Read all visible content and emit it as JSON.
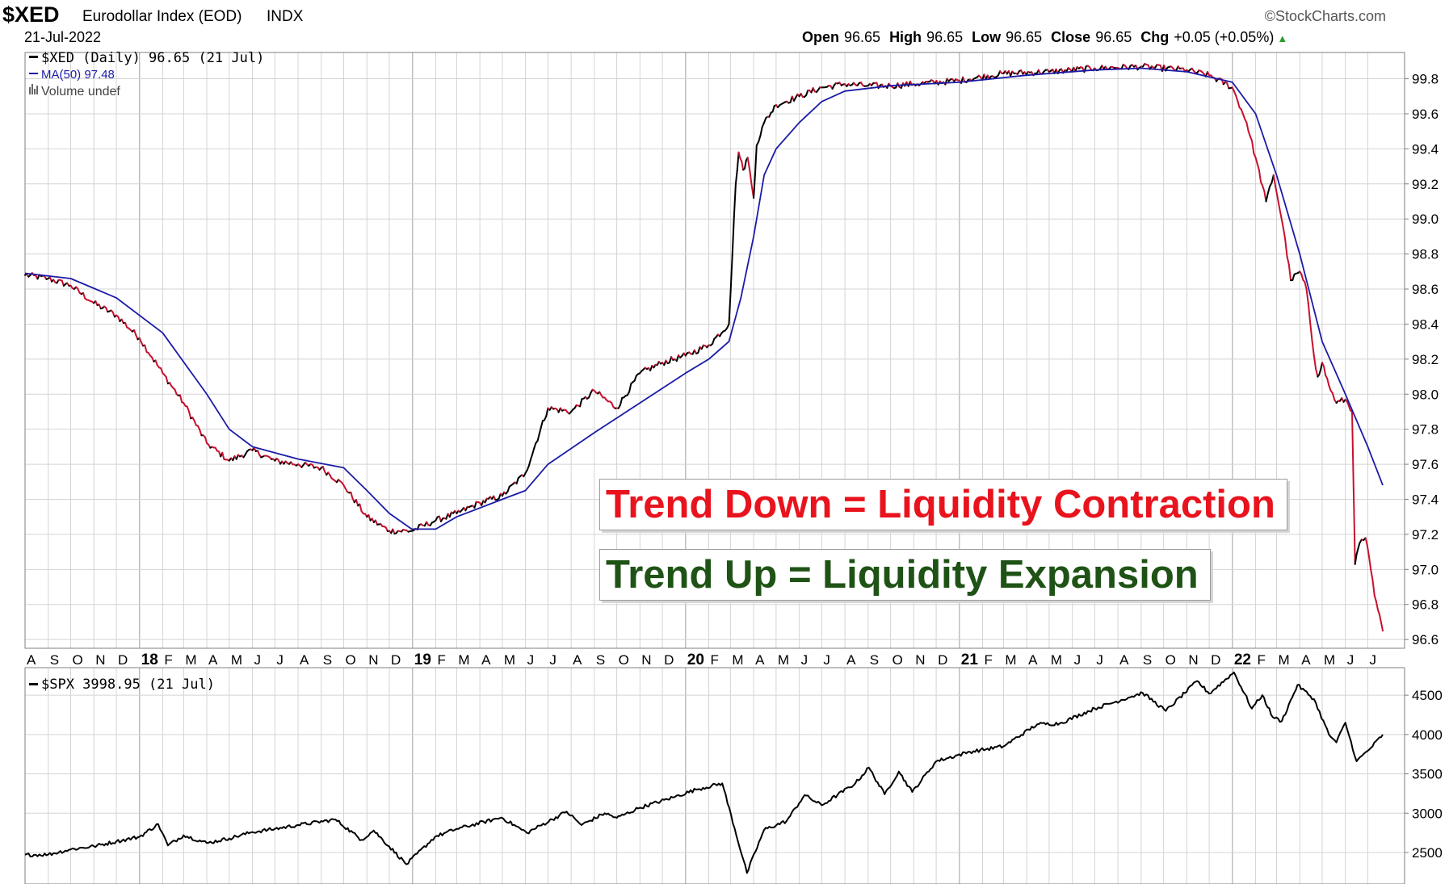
{
  "header": {
    "symbol": "$XED",
    "name": "Eurodollar Index (EOD)",
    "exchange": "INDX",
    "date": "21-Jul-2022",
    "brand": "©StockCharts.com",
    "ohlc": [
      {
        "label": "Open",
        "value": "96.65"
      },
      {
        "label": "High",
        "value": "96.65"
      },
      {
        "label": "Low",
        "value": "96.65"
      },
      {
        "label": "Close",
        "value": "96.65"
      }
    ],
    "chg_label": "Chg",
    "chg_value": "+0.05 (+0.05%)",
    "chg_arrow": "▲"
  },
  "legend": {
    "xed": "$XED (Daily) 96.65 (21 Jul)",
    "ma": "MA(50) 97.48",
    "volume": "Volume undef",
    "spx": "$SPX 3998.95 (21 Jul)"
  },
  "annotations": {
    "down": "Trend Down = Liquidity Contraction",
    "up": "Trend Up = Liquidity Expansion"
  },
  "colors": {
    "down_text": "#e8131d",
    "up_text": "#1f5316",
    "price_up": "#000000",
    "price_down": "#c8102e",
    "ma_line": "#1b1ba8",
    "spx_line": "#000000",
    "grid": "#d4d4d4"
  },
  "chart_data": [
    {
      "type": "line",
      "title": "$XED Eurodollar Index (EOD)",
      "y_ticks": [
        "99.8",
        "99.6",
        "99.4",
        "99.2",
        "99.0",
        "98.8",
        "98.6",
        "98.4",
        "98.2",
        "98.0",
        "97.8",
        "97.6",
        "97.4",
        "97.2",
        "97.0",
        "96.8",
        "96.6"
      ],
      "ylim": [
        96.55,
        99.95
      ],
      "x_labels": [
        "A",
        "S",
        "O",
        "N",
        "D",
        "18",
        "F",
        "M",
        "A",
        "M",
        "J",
        "J",
        "A",
        "S",
        "O",
        "N",
        "D",
        "19",
        "F",
        "M",
        "A",
        "M",
        "J",
        "J",
        "A",
        "S",
        "O",
        "N",
        "D",
        "20",
        "F",
        "M",
        "A",
        "M",
        "J",
        "J",
        "A",
        "S",
        "O",
        "N",
        "D",
        "21",
        "F",
        "M",
        "A",
        "M",
        "J",
        "J",
        "A",
        "S",
        "O",
        "N",
        "D",
        "22",
        "F",
        "M",
        "A",
        "M",
        "J",
        "J"
      ],
      "year_labels": [
        "18",
        "19",
        "20",
        "21",
        "22"
      ],
      "series": [
        {
          "name": "$XED (Daily)",
          "points": [
            [
              "2017-08-01",
              98.68
            ],
            [
              "2017-09-01",
              98.66
            ],
            [
              "2017-10-01",
              98.62
            ],
            [
              "2017-11-01",
              98.52
            ],
            [
              "2017-12-01",
              98.45
            ],
            [
              "2018-01-01",
              98.32
            ],
            [
              "2018-02-01",
              98.12
            ],
            [
              "2018-03-01",
              97.95
            ],
            [
              "2018-04-01",
              97.72
            ],
            [
              "2018-05-01",
              97.62
            ],
            [
              "2018-06-01",
              97.68
            ],
            [
              "2018-07-01",
              97.62
            ],
            [
              "2018-08-01",
              97.6
            ],
            [
              "2018-09-01",
              97.58
            ],
            [
              "2018-10-01",
              97.48
            ],
            [
              "2018-11-01",
              97.3
            ],
            [
              "2018-12-01",
              97.22
            ],
            [
              "2018-12-31",
              97.22
            ],
            [
              "2019-02-01",
              97.28
            ],
            [
              "2019-03-01",
              97.32
            ],
            [
              "2019-04-01",
              97.38
            ],
            [
              "2019-05-01",
              97.42
            ],
            [
              "2019-06-01",
              97.55
            ],
            [
              "2019-07-01",
              97.92
            ],
            [
              "2019-08-01",
              97.9
            ],
            [
              "2019-09-01",
              98.02
            ],
            [
              "2019-10-01",
              97.92
            ],
            [
              "2019-11-01",
              98.12
            ],
            [
              "2019-12-01",
              98.18
            ],
            [
              "2020-01-01",
              98.22
            ],
            [
              "2020-02-01",
              98.28
            ],
            [
              "2020-02-28",
              98.4
            ],
            [
              "2020-03-08",
              99.2
            ],
            [
              "2020-03-12",
              99.38
            ],
            [
              "2020-03-18",
              99.28
            ],
            [
              "2020-03-24",
              99.35
            ],
            [
              "2020-04-01",
              99.12
            ],
            [
              "2020-04-05",
              99.42
            ],
            [
              "2020-04-15",
              99.55
            ],
            [
              "2020-05-01",
              99.65
            ],
            [
              "2020-06-01",
              99.7
            ],
            [
              "2020-07-01",
              99.75
            ],
            [
              "2020-08-01",
              99.77
            ],
            [
              "2020-09-01",
              99.76
            ],
            [
              "2020-10-01",
              99.76
            ],
            [
              "2020-11-01",
              99.77
            ],
            [
              "2021-01-01",
              99.79
            ],
            [
              "2021-03-01",
              99.83
            ],
            [
              "2021-05-01",
              99.84
            ],
            [
              "2021-07-01",
              99.86
            ],
            [
              "2021-09-01",
              99.87
            ],
            [
              "2021-11-01",
              99.85
            ],
            [
              "2021-12-01",
              99.82
            ],
            [
              "2022-01-01",
              99.75
            ],
            [
              "2022-01-20",
              99.55
            ],
            [
              "2022-02-01",
              99.35
            ],
            [
              "2022-02-15",
              99.1
            ],
            [
              "2022-02-25",
              99.25
            ],
            [
              "2022-03-10",
              98.95
            ],
            [
              "2022-03-20",
              98.65
            ],
            [
              "2022-04-01",
              98.7
            ],
            [
              "2022-04-10",
              98.6
            ],
            [
              "2022-04-20",
              98.22
            ],
            [
              "2022-04-25",
              98.1
            ],
            [
              "2022-05-01",
              98.18
            ],
            [
              "2022-05-10",
              98.05
            ],
            [
              "2022-05-20",
              97.95
            ],
            [
              "2022-06-01",
              97.97
            ],
            [
              "2022-06-10",
              97.9
            ],
            [
              "2022-06-14",
              97.03
            ],
            [
              "2022-06-20",
              97.15
            ],
            [
              "2022-06-28",
              97.18
            ],
            [
              "2022-07-05",
              97.0
            ],
            [
              "2022-07-10",
              96.85
            ],
            [
              "2022-07-21",
              96.65
            ]
          ]
        },
        {
          "name": "MA(50)",
          "points": [
            [
              "2017-08-01",
              98.69
            ],
            [
              "2017-10-01",
              98.66
            ],
            [
              "2017-12-01",
              98.55
            ],
            [
              "2018-02-01",
              98.35
            ],
            [
              "2018-04-01",
              98.0
            ],
            [
              "2018-05-01",
              97.8
            ],
            [
              "2018-06-01",
              97.7
            ],
            [
              "2018-08-01",
              97.63
            ],
            [
              "2018-10-01",
              97.58
            ],
            [
              "2018-11-01",
              97.45
            ],
            [
              "2018-12-01",
              97.32
            ],
            [
              "2018-12-31",
              97.23
            ],
            [
              "2019-02-01",
              97.23
            ],
            [
              "2019-03-01",
              97.3
            ],
            [
              "2019-05-01",
              97.4
            ],
            [
              "2019-06-01",
              97.45
            ],
            [
              "2019-07-01",
              97.6
            ],
            [
              "2019-09-01",
              97.78
            ],
            [
              "2019-11-01",
              97.95
            ],
            [
              "2020-01-01",
              98.12
            ],
            [
              "2020-02-01",
              98.2
            ],
            [
              "2020-02-28",
              98.3
            ],
            [
              "2020-03-15",
              98.55
            ],
            [
              "2020-04-01",
              98.9
            ],
            [
              "2020-04-15",
              99.25
            ],
            [
              "2020-05-01",
              99.4
            ],
            [
              "2020-06-01",
              99.55
            ],
            [
              "2020-07-01",
              99.67
            ],
            [
              "2020-08-01",
              99.73
            ],
            [
              "2020-10-01",
              99.76
            ],
            [
              "2021-01-01",
              99.78
            ],
            [
              "2021-04-01",
              99.82
            ],
            [
              "2021-07-01",
              99.85
            ],
            [
              "2021-09-01",
              99.86
            ],
            [
              "2021-11-01",
              99.84
            ],
            [
              "2022-01-01",
              99.78
            ],
            [
              "2022-02-01",
              99.6
            ],
            [
              "2022-03-01",
              99.25
            ],
            [
              "2022-04-01",
              98.8
            ],
            [
              "2022-05-01",
              98.3
            ],
            [
              "2022-06-01",
              98.0
            ],
            [
              "2022-07-01",
              97.7
            ],
            [
              "2022-07-21",
              97.48
            ]
          ]
        }
      ]
    },
    {
      "type": "line",
      "title": "$SPX",
      "y_ticks": [
        "4500",
        "4000",
        "3500",
        "3000",
        "2500"
      ],
      "ylim": [
        2100,
        4850
      ],
      "series": [
        {
          "name": "$SPX",
          "points": [
            [
              "2017-08-01",
              2470
            ],
            [
              "2017-09-01",
              2475
            ],
            [
              "2017-10-01",
              2540
            ],
            [
              "2017-11-01",
              2580
            ],
            [
              "2017-12-01",
              2640
            ],
            [
              "2018-01-01",
              2700
            ],
            [
              "2018-01-26",
              2860
            ],
            [
              "2018-02-08",
              2590
            ],
            [
              "2018-03-01",
              2720
            ],
            [
              "2018-04-01",
              2620
            ],
            [
              "2018-05-01",
              2680
            ],
            [
              "2018-06-01",
              2760
            ],
            [
              "2018-07-01",
              2800
            ],
            [
              "2018-08-01",
              2850
            ],
            [
              "2018-09-20",
              2920
            ],
            [
              "2018-10-25",
              2660
            ],
            [
              "2018-11-10",
              2780
            ],
            [
              "2018-12-24",
              2350
            ],
            [
              "2019-01-31",
              2700
            ],
            [
              "2019-03-01",
              2800
            ],
            [
              "2019-04-30",
              2945
            ],
            [
              "2019-06-03",
              2750
            ],
            [
              "2019-07-26",
              3020
            ],
            [
              "2019-08-15",
              2850
            ],
            [
              "2019-09-15",
              3000
            ],
            [
              "2019-10-01",
              2940
            ],
            [
              "2019-11-01",
              3070
            ],
            [
              "2019-12-15",
              3200
            ],
            [
              "2020-01-15",
              3300
            ],
            [
              "2020-02-19",
              3380
            ],
            [
              "2020-03-23",
              2240
            ],
            [
              "2020-04-15",
              2790
            ],
            [
              "2020-05-15",
              2900
            ],
            [
              "2020-06-08",
              3230
            ],
            [
              "2020-07-01",
              3100
            ],
            [
              "2020-08-15",
              3380
            ],
            [
              "2020-09-02",
              3580
            ],
            [
              "2020-09-23",
              3240
            ],
            [
              "2020-10-12",
              3530
            ],
            [
              "2020-10-30",
              3270
            ],
            [
              "2020-12-01",
              3660
            ],
            [
              "2021-01-15",
              3780
            ],
            [
              "2021-03-01",
              3850
            ],
            [
              "2021-04-15",
              4130
            ],
            [
              "2021-05-15",
              4140
            ],
            [
              "2021-07-01",
              4330
            ],
            [
              "2021-08-15",
              4470
            ],
            [
              "2021-09-03",
              4530
            ],
            [
              "2021-10-04",
              4300
            ],
            [
              "2021-11-15",
              4680
            ],
            [
              "2021-12-01",
              4520
            ],
            [
              "2022-01-03",
              4790
            ],
            [
              "2022-01-27",
              4330
            ],
            [
              "2022-02-10",
              4500
            ],
            [
              "2022-02-24",
              4220
            ],
            [
              "2022-03-08",
              4170
            ],
            [
              "2022-03-29",
              4630
            ],
            [
              "2022-04-20",
              4450
            ],
            [
              "2022-05-10",
              4000
            ],
            [
              "2022-05-20",
              3900
            ],
            [
              "2022-06-01",
              4150
            ],
            [
              "2022-06-16",
              3660
            ],
            [
              "2022-07-05",
              3830
            ],
            [
              "2022-07-21",
              3999
            ]
          ]
        }
      ]
    }
  ]
}
